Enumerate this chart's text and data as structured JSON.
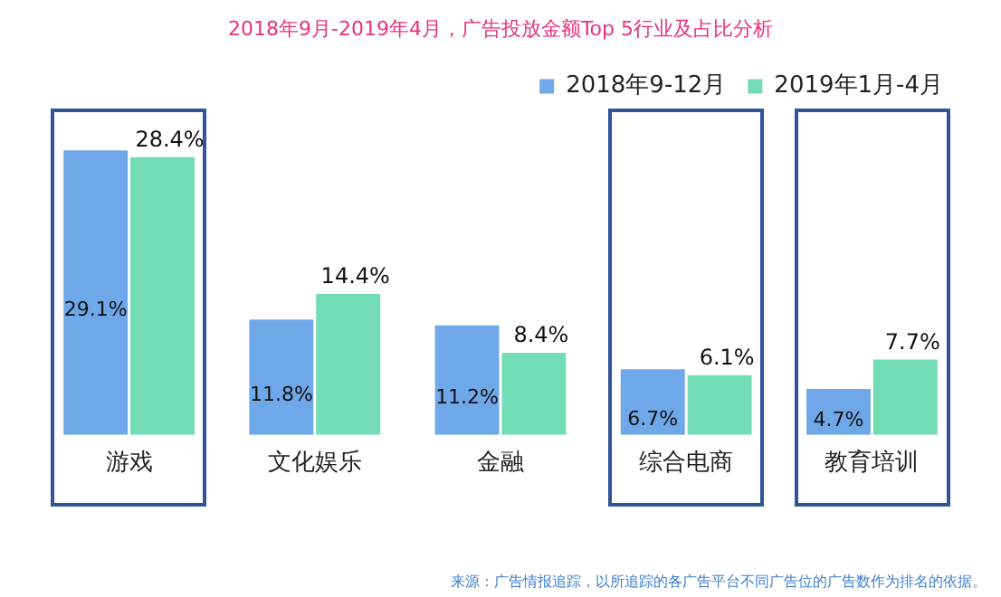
{
  "chart_data": {
    "type": "bar",
    "title": "2018年9月-2019年4月，广告投放金额Top 5行业及占比分析",
    "categories": [
      "游戏",
      "文化娱乐",
      "金融",
      "综合电商",
      "教育培训"
    ],
    "series": [
      {
        "name": "2018年9-12月",
        "color": "#6fa8e8",
        "values": [
          29.1,
          11.8,
          11.2,
          6.7,
          4.7
        ],
        "value_labels": [
          "29.1%",
          "11.8%",
          "11.2%",
          "6.7%",
          "4.7%"
        ]
      },
      {
        "name": "2019年1月-4月",
        "color": "#72dcb5",
        "values": [
          28.4,
          14.4,
          8.4,
          6.1,
          7.7
        ],
        "value_labels": [
          "28.4%",
          "14.4%",
          "8.4%",
          "6.1%",
          "7.7%"
        ]
      }
    ],
    "legend": "top right",
    "grid": false,
    "annotations": [
      "来源：广告情报追踪，以所追踪的各广告平台不同广告位的广告数作为排名的依据。"
    ]
  }
}
